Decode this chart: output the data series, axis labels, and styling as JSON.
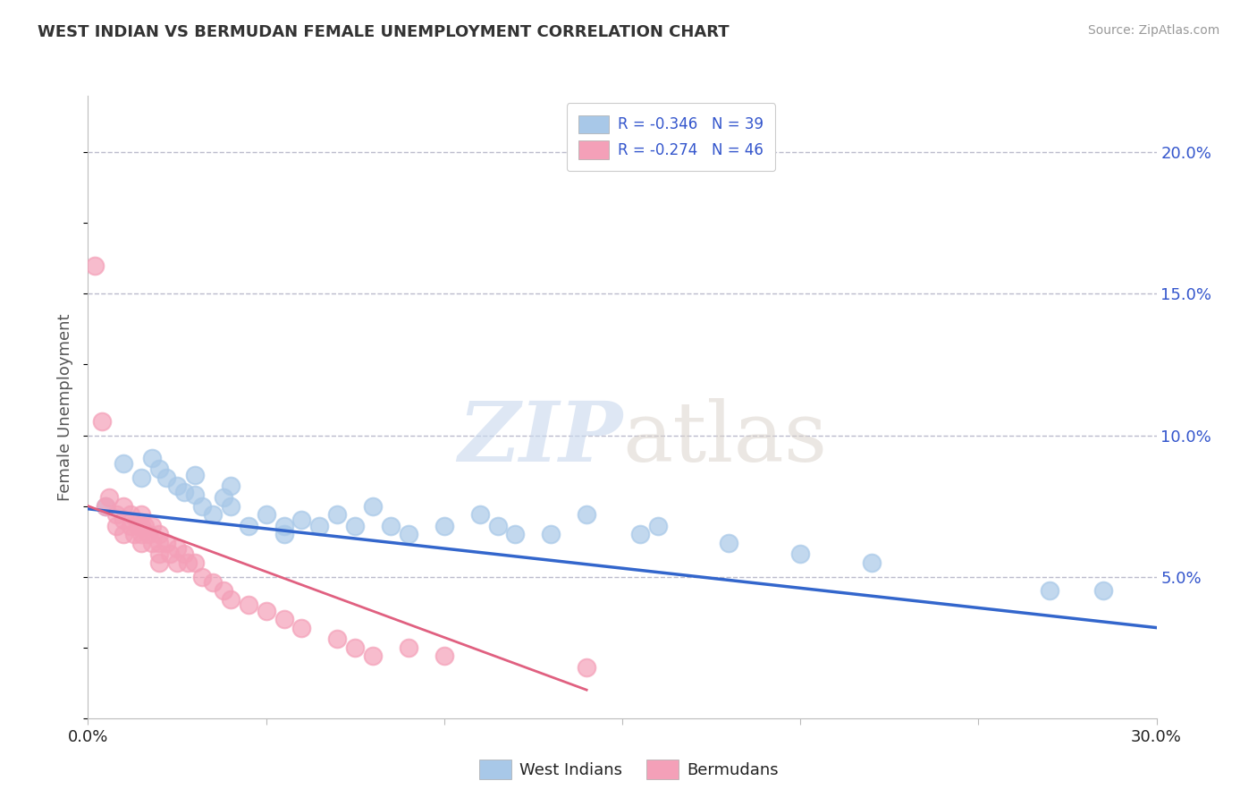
{
  "title": "WEST INDIAN VS BERMUDAN FEMALE UNEMPLOYMENT CORRELATION CHART",
  "source_text": "Source: ZipAtlas.com",
  "ylabel": "Female Unemployment",
  "xlim": [
    0.0,
    0.3
  ],
  "ylim": [
    0.0,
    0.22
  ],
  "xticks": [
    0.0,
    0.05,
    0.1,
    0.15,
    0.2,
    0.25,
    0.3
  ],
  "ytick_labels_right": [
    "5.0%",
    "10.0%",
    "15.0%",
    "20.0%"
  ],
  "yticks_right": [
    0.05,
    0.1,
    0.15,
    0.2
  ],
  "west_indian_color": "#A8C8E8",
  "bermudan_color": "#F4A0B8",
  "trend_west_color": "#3366CC",
  "trend_berm_color": "#E06080",
  "legend_r_west": "R = -0.346",
  "legend_n_west": "N = 39",
  "legend_r_berm": "R = -0.274",
  "legend_n_berm": "N = 46",
  "legend_label_west": "West Indians",
  "legend_label_berm": "Bermudans",
  "watermark_zip": "ZIP",
  "watermark_atlas": "atlas",
  "title_color": "#333333",
  "axis_label_color": "#555555",
  "tick_color": "#3355CC",
  "grid_color": "#BBBBCC",
  "west_indian_x": [
    0.005,
    0.01,
    0.015,
    0.018,
    0.02,
    0.022,
    0.025,
    0.027,
    0.03,
    0.03,
    0.032,
    0.035,
    0.038,
    0.04,
    0.04,
    0.045,
    0.05,
    0.055,
    0.055,
    0.06,
    0.065,
    0.07,
    0.075,
    0.08,
    0.085,
    0.09,
    0.1,
    0.11,
    0.115,
    0.12,
    0.13,
    0.14,
    0.155,
    0.16,
    0.18,
    0.2,
    0.22,
    0.27,
    0.285
  ],
  "west_indian_y": [
    0.075,
    0.09,
    0.085,
    0.092,
    0.088,
    0.085,
    0.082,
    0.08,
    0.079,
    0.086,
    0.075,
    0.072,
    0.078,
    0.075,
    0.082,
    0.068,
    0.072,
    0.065,
    0.068,
    0.07,
    0.068,
    0.072,
    0.068,
    0.075,
    0.068,
    0.065,
    0.068,
    0.072,
    0.068,
    0.065,
    0.065,
    0.072,
    0.065,
    0.068,
    0.062,
    0.058,
    0.055,
    0.045,
    0.045
  ],
  "bermudan_x": [
    0.002,
    0.004,
    0.005,
    0.006,
    0.008,
    0.008,
    0.01,
    0.01,
    0.01,
    0.012,
    0.012,
    0.013,
    0.014,
    0.015,
    0.015,
    0.015,
    0.015,
    0.016,
    0.017,
    0.018,
    0.018,
    0.02,
    0.02,
    0.02,
    0.02,
    0.022,
    0.023,
    0.025,
    0.025,
    0.027,
    0.028,
    0.03,
    0.032,
    0.035,
    0.038,
    0.04,
    0.045,
    0.05,
    0.055,
    0.06,
    0.07,
    0.075,
    0.08,
    0.09,
    0.1,
    0.14
  ],
  "bermudan_y": [
    0.16,
    0.105,
    0.075,
    0.078,
    0.072,
    0.068,
    0.075,
    0.07,
    0.065,
    0.072,
    0.068,
    0.065,
    0.068,
    0.072,
    0.068,
    0.065,
    0.062,
    0.068,
    0.065,
    0.068,
    0.062,
    0.065,
    0.062,
    0.058,
    0.055,
    0.062,
    0.058,
    0.06,
    0.055,
    0.058,
    0.055,
    0.055,
    0.05,
    0.048,
    0.045,
    0.042,
    0.04,
    0.038,
    0.035,
    0.032,
    0.028,
    0.025,
    0.022,
    0.025,
    0.022,
    0.018
  ],
  "trend_west_x0": 0.0,
  "trend_west_y0": 0.074,
  "trend_west_x1": 0.3,
  "trend_west_y1": 0.032,
  "trend_berm_x0": 0.0,
  "trend_berm_y0": 0.075,
  "trend_berm_x1": 0.14,
  "trend_berm_y1": 0.01
}
